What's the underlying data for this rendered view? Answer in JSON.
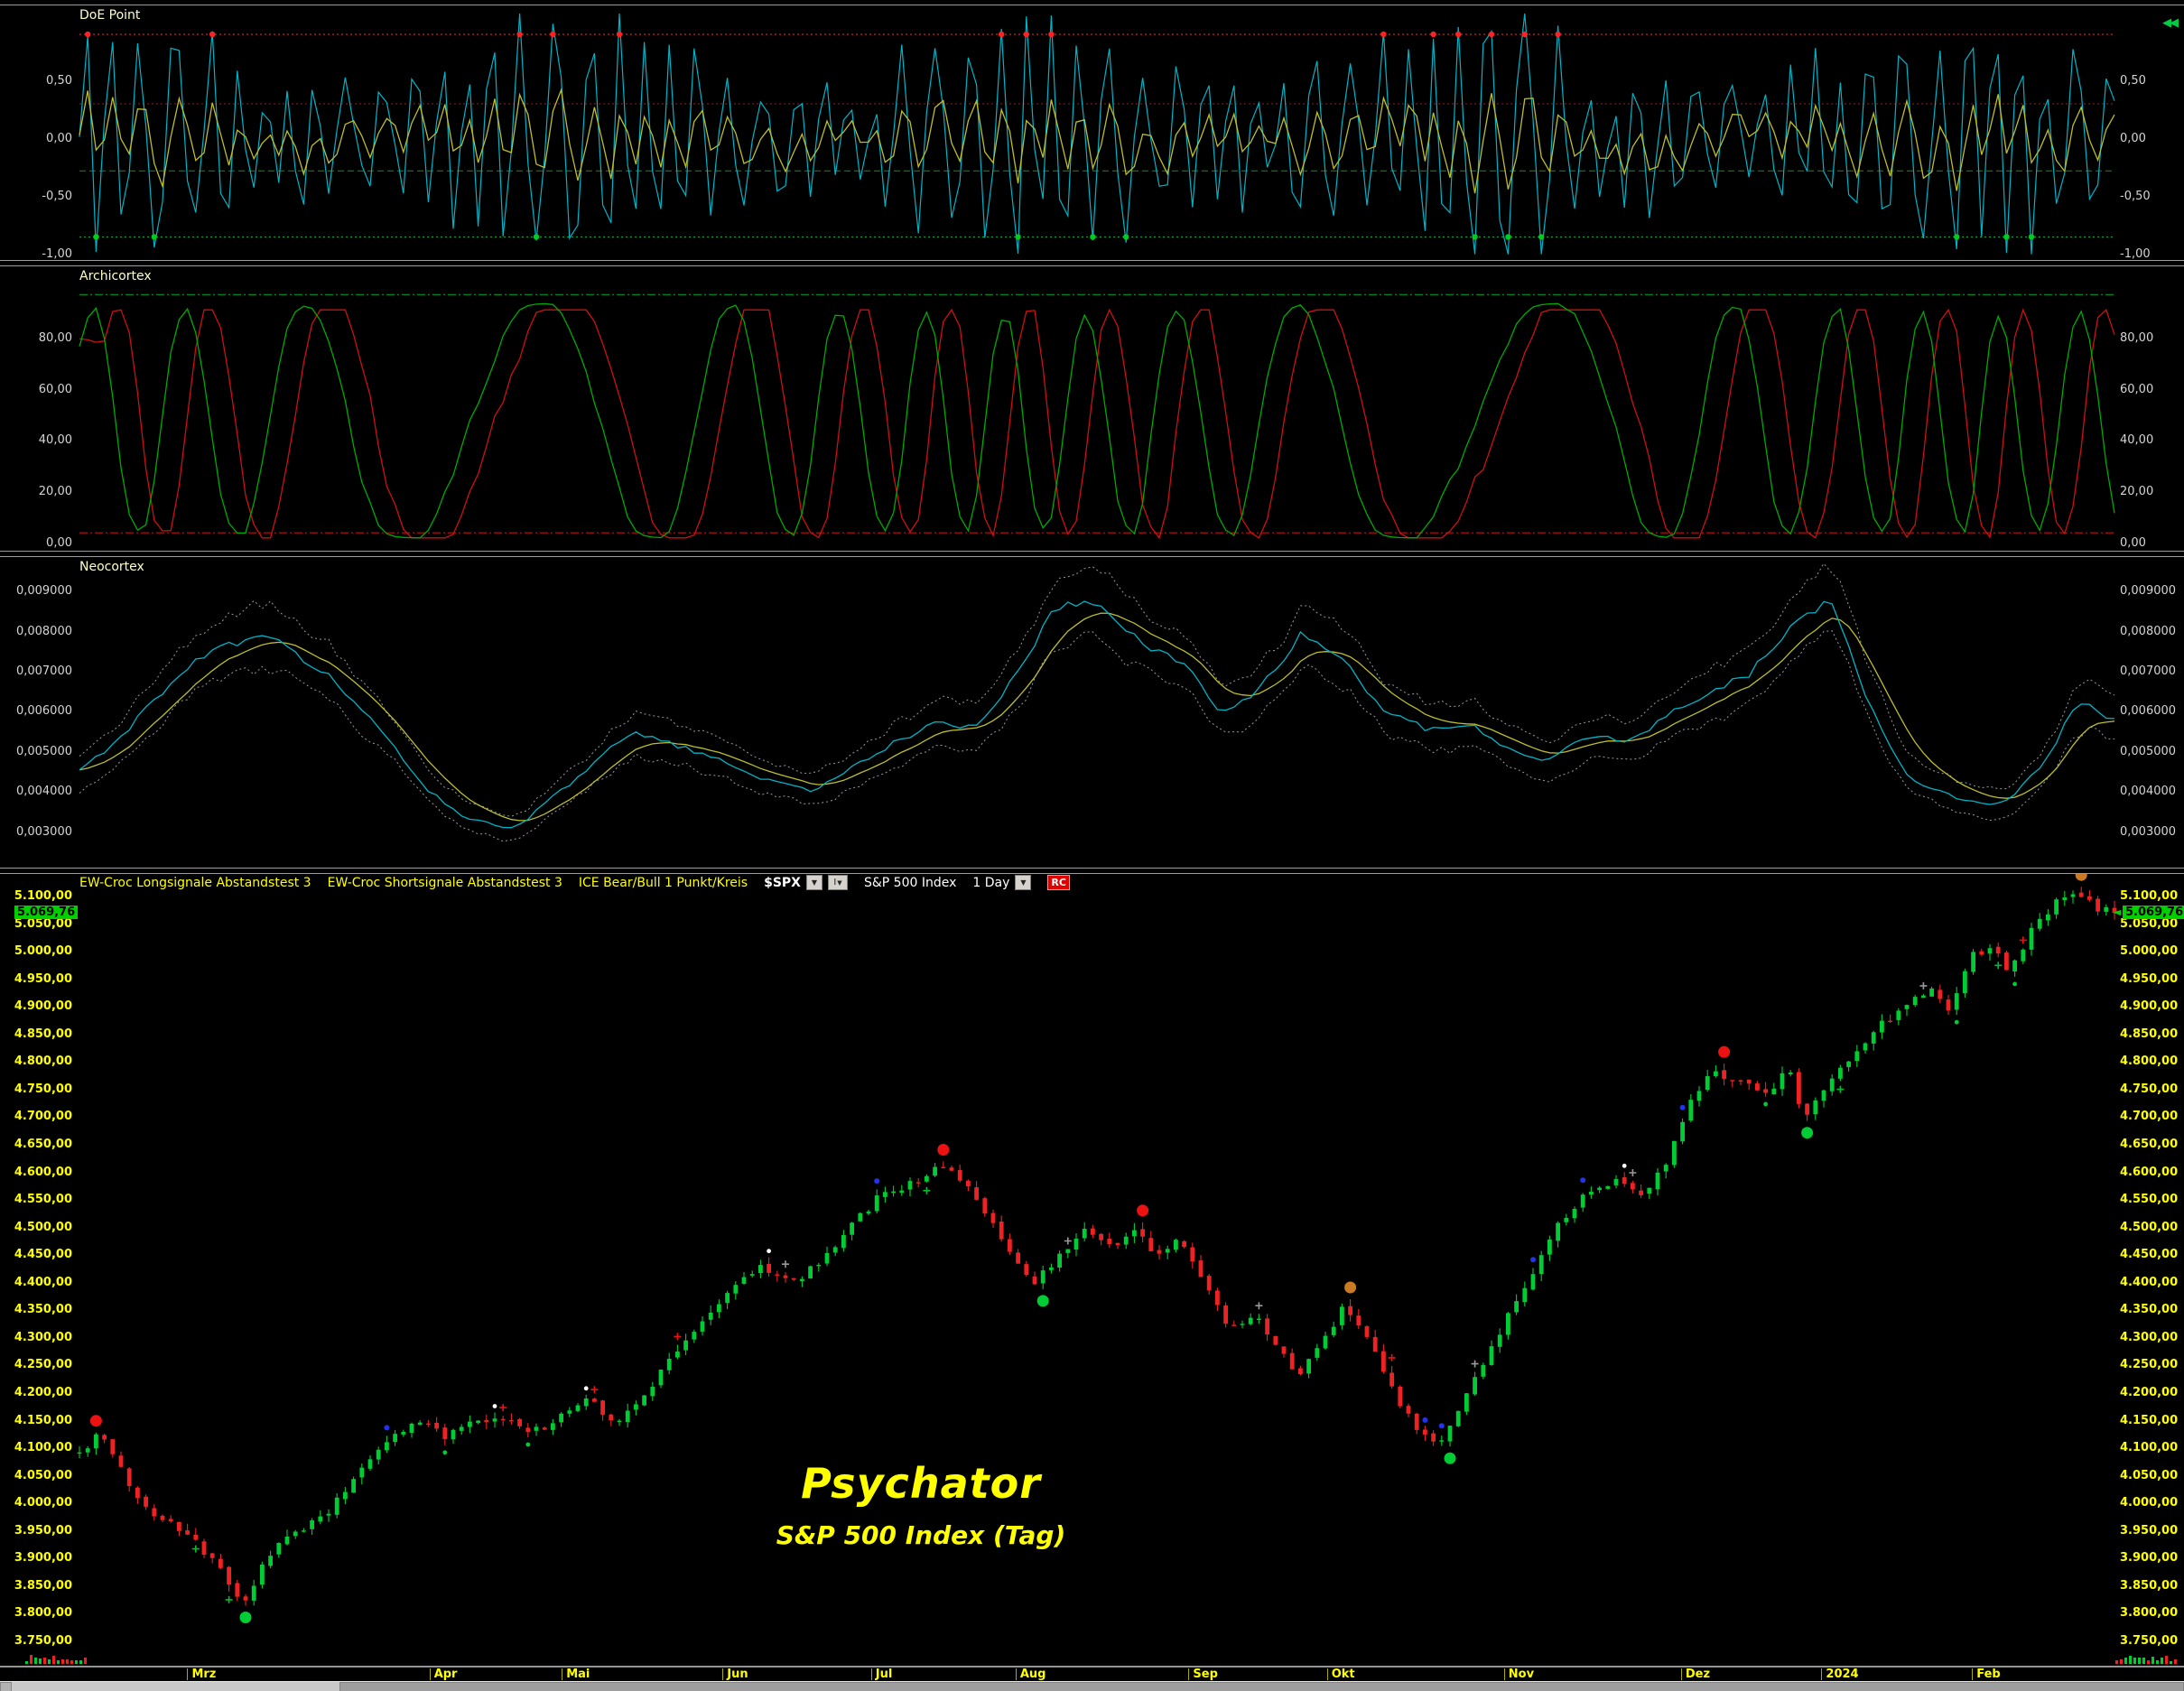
{
  "icons": {
    "dropdown": "▼",
    "pan": "◀◀",
    "price_pointer": "◄"
  },
  "chart_data": [
    {
      "id": "doe",
      "type": "line",
      "title": "DoE Point",
      "points": 246,
      "ylim": [
        -1.05,
        1.15
      ],
      "ytick_values": [
        0.5,
        0,
        -0.5,
        -1
      ],
      "ytick_labels": [
        "0,50",
        "0,00",
        "-0,50",
        "-1,00"
      ],
      "thresholds": [
        {
          "v": 0.9,
          "color": "#ff2a2a",
          "style": "dotted"
        },
        {
          "v": 0.3,
          "color": "#8f2020",
          "style": "dotted"
        },
        {
          "v": -0.28,
          "color": "#1e8a1e",
          "style": "dashed"
        },
        {
          "v": -0.85,
          "color": "#00bb44",
          "style": "dotted"
        }
      ],
      "series": [
        {
          "name": "oscillator",
          "color": "#00b4c8"
        },
        {
          "name": "signal",
          "color": "#bdbd2e"
        }
      ],
      "markers": {
        "top": {
          "at": 0.9,
          "color": "#ff2222"
        },
        "bottom": {
          "at": -0.85,
          "color": "#00cc22"
        }
      },
      "seed": 11
    },
    {
      "id": "arch",
      "type": "line",
      "title": "Archicortex",
      "points": 246,
      "ylim": [
        -3,
        108
      ],
      "ytick_values": [
        80,
        60,
        40,
        20,
        0
      ],
      "ytick_labels": [
        "80,00",
        "60,00",
        "40,00",
        "20,00",
        "0,00"
      ],
      "thresholds": [
        {
          "v": 97,
          "color": "#00aa22",
          "style": "dashdot"
        },
        {
          "v": 4,
          "color": "#dd1111",
          "style": "dashdot"
        }
      ],
      "series": [
        {
          "name": "fast",
          "color": "#00aa00"
        },
        {
          "name": "slow",
          "color": "#cc1111"
        }
      ],
      "seed": 21
    },
    {
      "id": "neo",
      "type": "line",
      "title": "Neocortex",
      "points": 246,
      "ylim": [
        0.0021,
        0.00985
      ],
      "ytick_values": [
        0.009,
        0.008,
        0.007,
        0.006,
        0.005,
        0.004,
        0.003
      ],
      "ytick_labels": [
        "0,009000",
        "0,008000",
        "0,007000",
        "0,006000",
        "0,005000",
        "0,004000",
        "0,003000"
      ],
      "series": [
        {
          "name": "upper-band",
          "color": "#9a9a9a",
          "style": "dotted"
        },
        {
          "name": "lower-band",
          "color": "#9a9a9a",
          "style": "dotted"
        },
        {
          "name": "main",
          "color": "#00b4c8"
        },
        {
          "name": "signal",
          "color": "#bdbd2e"
        }
      ],
      "keypoints": [
        [
          0,
          0.0045
        ],
        [
          0.03,
          0.006
        ],
        [
          0.06,
          0.0075
        ],
        [
          0.09,
          0.0078
        ],
        [
          0.12,
          0.007
        ],
        [
          0.15,
          0.0052
        ],
        [
          0.17,
          0.004
        ],
        [
          0.19,
          0.0033
        ],
        [
          0.21,
          0.003
        ],
        [
          0.24,
          0.0042
        ],
        [
          0.27,
          0.0055
        ],
        [
          0.3,
          0.005
        ],
        [
          0.33,
          0.0044
        ],
        [
          0.36,
          0.004
        ],
        [
          0.39,
          0.005
        ],
        [
          0.42,
          0.0058
        ],
        [
          0.44,
          0.0056
        ],
        [
          0.46,
          0.007
        ],
        [
          0.48,
          0.0088
        ],
        [
          0.5,
          0.0086
        ],
        [
          0.52,
          0.0078
        ],
        [
          0.54,
          0.0072
        ],
        [
          0.56,
          0.006
        ],
        [
          0.58,
          0.0066
        ],
        [
          0.6,
          0.008
        ],
        [
          0.62,
          0.0072
        ],
        [
          0.64,
          0.006
        ],
        [
          0.66,
          0.0055
        ],
        [
          0.68,
          0.0058
        ],
        [
          0.7,
          0.005
        ],
        [
          0.72,
          0.0048
        ],
        [
          0.74,
          0.0055
        ],
        [
          0.76,
          0.0052
        ],
        [
          0.78,
          0.006
        ],
        [
          0.8,
          0.0065
        ],
        [
          0.82,
          0.007
        ],
        [
          0.84,
          0.0082
        ],
        [
          0.86,
          0.0088
        ],
        [
          0.88,
          0.0058
        ],
        [
          0.9,
          0.0042
        ],
        [
          0.92,
          0.0038
        ],
        [
          0.94,
          0.0036
        ],
        [
          0.96,
          0.0045
        ],
        [
          0.98,
          0.0062
        ],
        [
          1,
          0.0058
        ]
      ],
      "seed": 31
    },
    {
      "id": "price",
      "type": "candlestick",
      "header": {
        "indicators": [
          "EW-Croc Longsignale Abstandstest 3",
          "EW-Croc Shortsignale Abstandstest 3",
          "ICE Bear/Bull 1 Punkt/Kreis"
        ],
        "symbol": "$SPX",
        "instrument_button": "I",
        "name": "S&P 500 Index",
        "period": "1 Day",
        "rc": "RC"
      },
      "last_price_label": "5.069,76",
      "last_price": 5069.76,
      "candles": 246,
      "ylim": [
        3705,
        5140
      ],
      "ytick_values": [
        5100,
        5050,
        5000,
        4950,
        4900,
        4850,
        4800,
        4750,
        4700,
        4650,
        4600,
        4550,
        4500,
        4450,
        4400,
        4350,
        4300,
        4250,
        4200,
        4150,
        4100,
        4050,
        4000,
        3950,
        3900,
        3850,
        3800,
        3750
      ],
      "ytick_labels": [
        "5.100,00",
        "5.050,00",
        "5.000,00",
        "4.950,00",
        "4.900,00",
        "4.850,00",
        "4.800,00",
        "4.750,00",
        "4.700,00",
        "4.650,00",
        "4.600,00",
        "4.550,00",
        "4.500,00",
        "4.450,00",
        "4.400,00",
        "4.350,00",
        "4.300,00",
        "4.250,00",
        "4.200,00",
        "4.150,00",
        "4.100,00",
        "4.050,00",
        "4.000,00",
        "3.950,00",
        "3.900,00",
        "3.850,00",
        "3.800,00",
        "3.750,00"
      ],
      "months": [
        {
          "label": "Mrz",
          "f": 0.053
        },
        {
          "label": "Apr",
          "f": 0.172
        },
        {
          "label": "Mai",
          "f": 0.237
        },
        {
          "label": "Jun",
          "f": 0.316
        },
        {
          "label": "Jul",
          "f": 0.389
        },
        {
          "label": "Aug",
          "f": 0.46
        },
        {
          "label": "Sep",
          "f": 0.545
        },
        {
          "label": "Okt",
          "f": 0.613
        },
        {
          "label": "Nov",
          "f": 0.7
        },
        {
          "label": "Dez",
          "f": 0.787
        },
        {
          "label": "2024",
          "f": 0.856
        },
        {
          "label": "Feb",
          "f": 0.93
        }
      ],
      "up_color": "#00cc33",
      "down_color": "#ee2222",
      "keypoints": [
        [
          0,
          4090
        ],
        [
          0.01,
          4125
        ],
        [
          0.03,
          4000
        ],
        [
          0.05,
          3950
        ],
        [
          0.065,
          3900
        ],
        [
          0.08,
          3815
        ],
        [
          0.095,
          3915
        ],
        [
          0.11,
          3955
        ],
        [
          0.125,
          3995
        ],
        [
          0.14,
          4075
        ],
        [
          0.155,
          4125
        ],
        [
          0.168,
          4150
        ],
        [
          0.18,
          4120
        ],
        [
          0.195,
          4145
        ],
        [
          0.21,
          4150
        ],
        [
          0.225,
          4130
        ],
        [
          0.24,
          4165
        ],
        [
          0.25,
          4192
        ],
        [
          0.262,
          4148
        ],
        [
          0.275,
          4180
        ],
        [
          0.29,
          4265
        ],
        [
          0.305,
          4320
        ],
        [
          0.32,
          4390
        ],
        [
          0.335,
          4430
        ],
        [
          0.35,
          4398
        ],
        [
          0.365,
          4440
        ],
        [
          0.38,
          4510
        ],
        [
          0.395,
          4560
        ],
        [
          0.41,
          4580
        ],
        [
          0.42,
          4607
        ],
        [
          0.432,
          4590
        ],
        [
          0.445,
          4530
        ],
        [
          0.458,
          4455
        ],
        [
          0.468,
          4390
        ],
        [
          0.48,
          4445
        ],
        [
          0.495,
          4505
        ],
        [
          0.505,
          4465
        ],
        [
          0.518,
          4490
        ],
        [
          0.53,
          4450
        ],
        [
          0.54,
          4478
        ],
        [
          0.552,
          4405
        ],
        [
          0.565,
          4310
        ],
        [
          0.578,
          4335
        ],
        [
          0.59,
          4270
        ],
        [
          0.6,
          4235
        ],
        [
          0.612,
          4300
        ],
        [
          0.622,
          4358
        ],
        [
          0.635,
          4280
        ],
        [
          0.648,
          4180
        ],
        [
          0.66,
          4120
        ],
        [
          0.668,
          4105
        ],
        [
          0.68,
          4185
        ],
        [
          0.695,
          4290
        ],
        [
          0.71,
          4390
        ],
        [
          0.725,
          4495
        ],
        [
          0.74,
          4558
        ],
        [
          0.755,
          4590
        ],
        [
          0.768,
          4560
        ],
        [
          0.78,
          4620
        ],
        [
          0.792,
          4740
        ],
        [
          0.805,
          4782
        ],
        [
          0.818,
          4760
        ],
        [
          0.83,
          4745
        ],
        [
          0.84,
          4785
        ],
        [
          0.848,
          4695
        ],
        [
          0.86,
          4770
        ],
        [
          0.872,
          4810
        ],
        [
          0.885,
          4865
        ],
        [
          0.898,
          4905
        ],
        [
          0.91,
          4930
        ],
        [
          0.918,
          4890
        ],
        [
          0.93,
          4990
        ],
        [
          0.94,
          5005
        ],
        [
          0.948,
          4962
        ],
        [
          0.96,
          5040
        ],
        [
          0.972,
          5090
        ],
        [
          0.982,
          5105
        ],
        [
          0.99,
          5080
        ],
        [
          1,
          5069.76
        ]
      ],
      "watermark": {
        "line1": "Psychator",
        "line2": "S&P 500 Index (Tag)",
        "color": "#ffff00"
      },
      "seed": 42
    }
  ]
}
